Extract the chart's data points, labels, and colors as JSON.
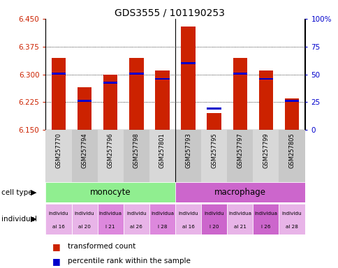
{
  "title": "GDS3555 / 101190253",
  "samples": [
    "GSM257770",
    "GSM257794",
    "GSM257796",
    "GSM257798",
    "GSM257801",
    "GSM257793",
    "GSM257795",
    "GSM257797",
    "GSM257799",
    "GSM257805"
  ],
  "red_values": [
    6.345,
    6.265,
    6.3,
    6.345,
    6.31,
    6.43,
    6.195,
    6.345,
    6.31,
    6.235
  ],
  "blue_values": [
    6.302,
    6.228,
    6.278,
    6.302,
    6.288,
    6.33,
    6.208,
    6.302,
    6.288,
    6.228
  ],
  "ymin": 6.15,
  "ymax": 6.45,
  "y_ticks_left": [
    6.15,
    6.225,
    6.3,
    6.375,
    6.45
  ],
  "y_ticks_right": [
    0,
    25,
    50,
    75,
    100
  ],
  "cell_type_labels": [
    "monocyte",
    "macrophage"
  ],
  "cell_type_colors": [
    "#90ee90",
    "#cc66cc"
  ],
  "ind_colors": [
    "#e8b4e8",
    "#e8b4e8",
    "#dd88dd",
    "#e8b4e8",
    "#dd88dd",
    "#e8b4e8",
    "#cc66cc",
    "#e8b4e8",
    "#cc66cc",
    "#e8b4e8"
  ],
  "ind_line1": [
    "individu",
    "individu",
    "individua",
    "individu",
    "individua",
    "individu",
    "individu",
    "individua",
    "individua",
    "individu"
  ],
  "ind_line2": [
    "al 16",
    "al 20",
    "l 21",
    "al 26",
    "l 28",
    "al 16",
    "l 20",
    "al 21",
    "l 26",
    "al 28"
  ],
  "bar_color": "#cc2200",
  "blue_color": "#0000cc",
  "left_color": "#cc2200",
  "right_color": "#0000cc",
  "bar_width": 0.55,
  "grid_linestyle": "dotted"
}
